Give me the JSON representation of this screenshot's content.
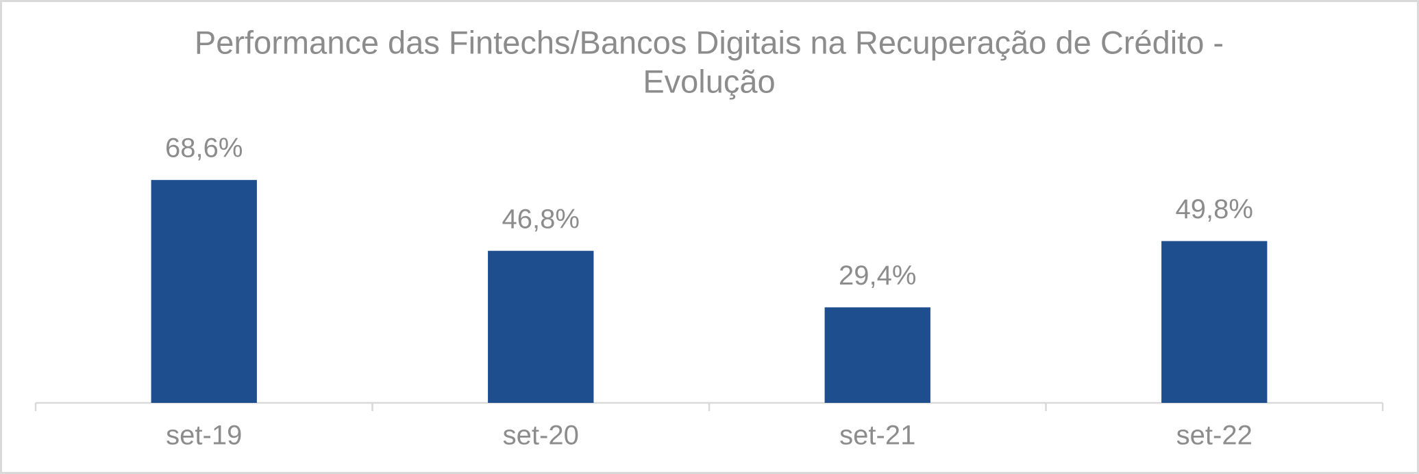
{
  "chart_data": {
    "type": "bar",
    "title": [
      "Performance das Fintechs/Bancos Digitais na Recuperação de Crédito -",
      "Evolução"
    ],
    "categories": [
      "set-19",
      "set-20",
      "set-21",
      "set-22"
    ],
    "values": [
      68.6,
      46.8,
      29.4,
      49.8
    ],
    "value_labels": [
      "68,6%",
      "46,8%",
      "29,4%",
      "49,8%"
    ],
    "color": "#1f4e8f",
    "ylim": [
      0,
      80
    ]
  }
}
